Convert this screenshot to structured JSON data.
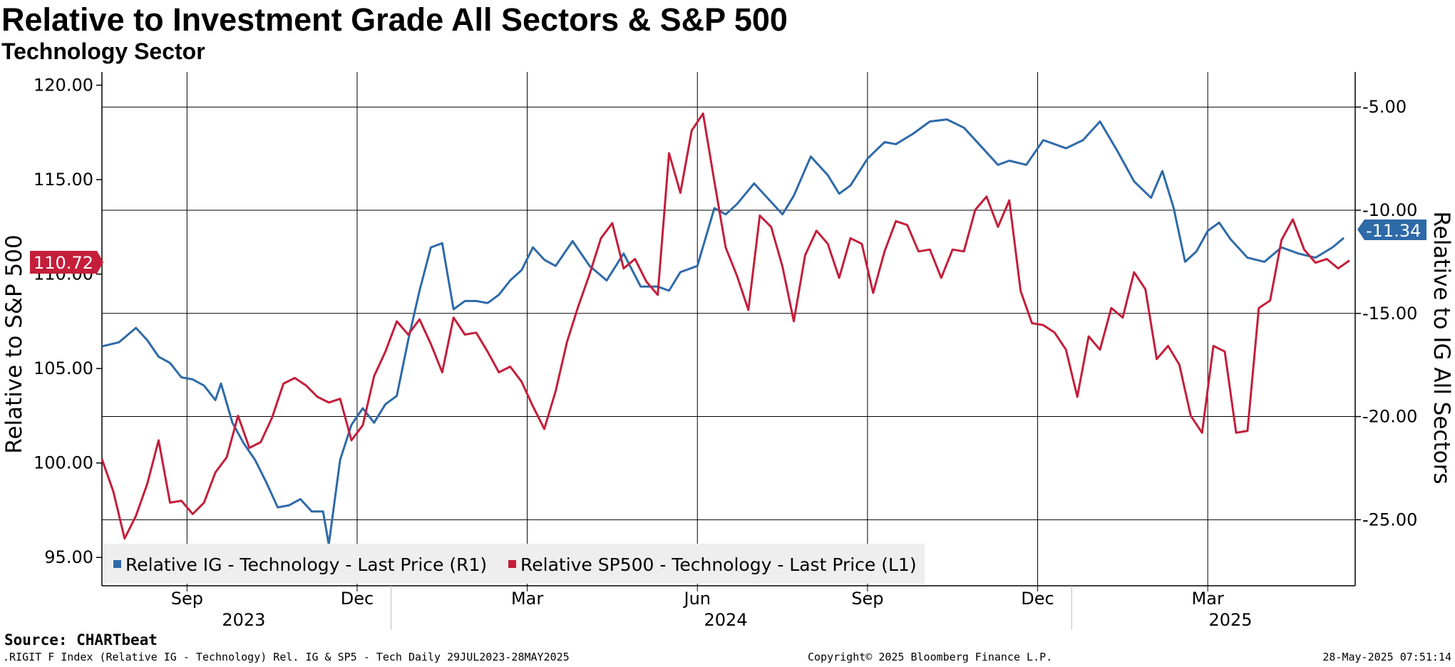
{
  "header": {
    "title": "Relative to Investment Grade All Sectors & S&P 500",
    "subtitle": "Technology Sector"
  },
  "footer": {
    "source": "Source: CHARTbeat",
    "index_info": ".RIGIT F Index (Relative IG - Technology) Rel. IG & SP5 - Tech  Daily 29JUL2023-28MAY2025",
    "copyright": "Copyright© 2025 Bloomberg Finance L.P.",
    "timestamp": "28-May-2025 07:51:14"
  },
  "colors": {
    "blue": "#2e6aa8",
    "red": "#c41e3a",
    "legend_bg": "#eeeeee"
  },
  "chart_data": {
    "type": "line",
    "left_axis": {
      "label": "Relative to S&P 500",
      "range": [
        93.5,
        120.7
      ],
      "ticks": [
        "95.00",
        "100.00",
        "105.00",
        "110.00",
        "115.00",
        "120.00"
      ]
    },
    "right_axis": {
      "label": "Relative to IG All Sectors",
      "range": [
        -28.2,
        -3.3
      ],
      "ticks": [
        "-5.00",
        "-10.00",
        "-15.00",
        "-20.00",
        "-25.00"
      ]
    },
    "x_range_months": [
      0,
      22.1
    ],
    "month_ticks": [
      {
        "label": "Sep",
        "m": 1.5
      },
      {
        "label": "Dec",
        "m": 4.5
      },
      {
        "label": "Mar",
        "m": 7.5
      },
      {
        "label": "Jun",
        "m": 10.5
      },
      {
        "label": "Sep",
        "m": 13.5
      },
      {
        "label": "Dec",
        "m": 16.5
      },
      {
        "label": "Mar",
        "m": 19.5
      }
    ],
    "year_labels": [
      {
        "label": "2023",
        "m": 2.5
      },
      {
        "label": "2024",
        "m": 11.0
      },
      {
        "label": "2025",
        "m": 19.9
      }
    ],
    "year_dividers": [
      5.1,
      17.1
    ],
    "last_values": {
      "left": "110.72",
      "right": "-11.34"
    },
    "series": [
      {
        "name": "Relative IG - Technology - Last Price (R1)",
        "axis": "right",
        "x": [
          0,
          0.3,
          0.6,
          0.8,
          1.0,
          1.2,
          1.4,
          1.6,
          1.8,
          2.0,
          2.1,
          2.3,
          2.5,
          2.7,
          2.9,
          3.1,
          3.3,
          3.5,
          3.7,
          3.9,
          4.0,
          4.2,
          4.4,
          4.6,
          4.8,
          5.0,
          5.2,
          5.4,
          5.6,
          5.8,
          6.0,
          6.2,
          6.4,
          6.6,
          6.8,
          7.0,
          7.2,
          7.4,
          7.6,
          7.8,
          8.0,
          8.3,
          8.6,
          8.9,
          9.2,
          9.5,
          9.8,
          10.0,
          10.2,
          10.5,
          10.8,
          11.0,
          11.2,
          11.5,
          11.8,
          12.0,
          12.2,
          12.5,
          12.8,
          13.0,
          13.2,
          13.5,
          13.8,
          14.0,
          14.3,
          14.6,
          14.9,
          15.2,
          15.5,
          15.8,
          16.0,
          16.3,
          16.6,
          16.8,
          17.0,
          17.3,
          17.6,
          17.9,
          18.2,
          18.5,
          18.7,
          18.9,
          19.1,
          19.3,
          19.5,
          19.7,
          19.9,
          20.2,
          20.5,
          20.8,
          21.1,
          21.4,
          21.7,
          21.9
        ],
        "values": [
          -16.6,
          -16.4,
          -15.7,
          -16.3,
          -17.1,
          -17.4,
          -18.1,
          -18.2,
          -18.5,
          -19.2,
          -18.4,
          -20.3,
          -21.3,
          -22.1,
          -23.2,
          -24.4,
          -24.3,
          -24.0,
          -24.6,
          -24.6,
          -26.2,
          -22.1,
          -20.4,
          -19.6,
          -20.3,
          -19.4,
          -19.0,
          -16.3,
          -13.9,
          -11.8,
          -11.6,
          -14.8,
          -14.4,
          -14.4,
          -14.5,
          -14.1,
          -13.4,
          -12.9,
          -11.8,
          -12.4,
          -12.7,
          -11.5,
          -12.7,
          -13.4,
          -12.1,
          -13.7,
          -13.7,
          -13.9,
          -13.0,
          -12.7,
          -9.9,
          -10.2,
          -9.7,
          -8.7,
          -9.6,
          -10.2,
          -9.3,
          -7.4,
          -8.3,
          -9.2,
          -8.8,
          -7.5,
          -6.7,
          -6.8,
          -6.3,
          -5.7,
          -5.6,
          -6.0,
          -6.9,
          -7.8,
          -7.6,
          -7.8,
          -6.6,
          -6.8,
          -7.0,
          -6.6,
          -5.7,
          -7.1,
          -8.6,
          -9.4,
          -8.1,
          -9.9,
          -12.5,
          -12.0,
          -11.0,
          -10.6,
          -11.4,
          -12.3,
          -12.5,
          -11.8,
          -12.1,
          -12.3,
          -11.8,
          -11.34
        ]
      },
      {
        "name": "Relative SP500 - Technology - Last Price (L1)",
        "axis": "left",
        "x": [
          0,
          0.2,
          0.4,
          0.6,
          0.8,
          1.0,
          1.2,
          1.4,
          1.6,
          1.8,
          2.0,
          2.2,
          2.4,
          2.6,
          2.8,
          3.0,
          3.2,
          3.4,
          3.6,
          3.8,
          4.0,
          4.2,
          4.4,
          4.6,
          4.8,
          5.0,
          5.2,
          5.4,
          5.6,
          5.8,
          6.0,
          6.2,
          6.4,
          6.6,
          6.8,
          7.0,
          7.2,
          7.4,
          7.6,
          7.8,
          8.0,
          8.2,
          8.4,
          8.6,
          8.8,
          9.0,
          9.2,
          9.4,
          9.6,
          9.8,
          10.0,
          10.2,
          10.4,
          10.6,
          10.8,
          11.0,
          11.2,
          11.4,
          11.6,
          11.8,
          12.0,
          12.2,
          12.4,
          12.6,
          12.8,
          13.0,
          13.2,
          13.4,
          13.6,
          13.8,
          14.0,
          14.2,
          14.4,
          14.6,
          14.8,
          15.0,
          15.2,
          15.4,
          15.6,
          15.8,
          16.0,
          16.2,
          16.4,
          16.6,
          16.8,
          17.0,
          17.2,
          17.4,
          17.6,
          17.8,
          18.0,
          18.2,
          18.4,
          18.6,
          18.8,
          19.0,
          19.2,
          19.4,
          19.6,
          19.8,
          20.0,
          20.2,
          20.4,
          20.6,
          20.8,
          21.0,
          21.2,
          21.4,
          21.6,
          21.8,
          22.0
        ],
        "values": [
          100.2,
          98.5,
          96.0,
          97.2,
          98.9,
          101.2,
          97.9,
          98.0,
          97.3,
          97.9,
          99.5,
          100.3,
          102.5,
          100.8,
          101.1,
          102.4,
          104.2,
          104.5,
          104.1,
          103.5,
          103.2,
          103.4,
          101.2,
          102.0,
          104.6,
          105.9,
          107.5,
          106.8,
          107.6,
          106.3,
          104.8,
          107.7,
          106.8,
          106.9,
          105.9,
          104.8,
          105.1,
          104.3,
          103.0,
          101.8,
          103.8,
          106.4,
          108.3,
          110.0,
          111.9,
          112.7,
          110.3,
          110.8,
          109.6,
          108.9,
          116.4,
          114.3,
          117.6,
          118.5,
          114.9,
          111.4,
          109.9,
          108.1,
          113.1,
          112.5,
          110.4,
          107.5,
          111.0,
          112.3,
          111.6,
          109.8,
          111.9,
          111.6,
          109.0,
          111.2,
          112.8,
          112.6,
          111.2,
          111.3,
          109.8,
          111.3,
          111.2,
          113.4,
          114.1,
          112.5,
          113.9,
          109.1,
          107.4,
          107.3,
          106.9,
          106.0,
          103.5,
          106.7,
          106.0,
          108.2,
          107.7,
          110.1,
          109.2,
          105.5,
          106.2,
          105.2,
          102.5,
          101.6,
          106.2,
          105.9,
          101.6,
          101.7,
          108.2,
          108.6,
          111.8,
          112.9,
          111.3,
          110.6,
          110.8,
          110.3,
          110.72
        ]
      }
    ]
  }
}
